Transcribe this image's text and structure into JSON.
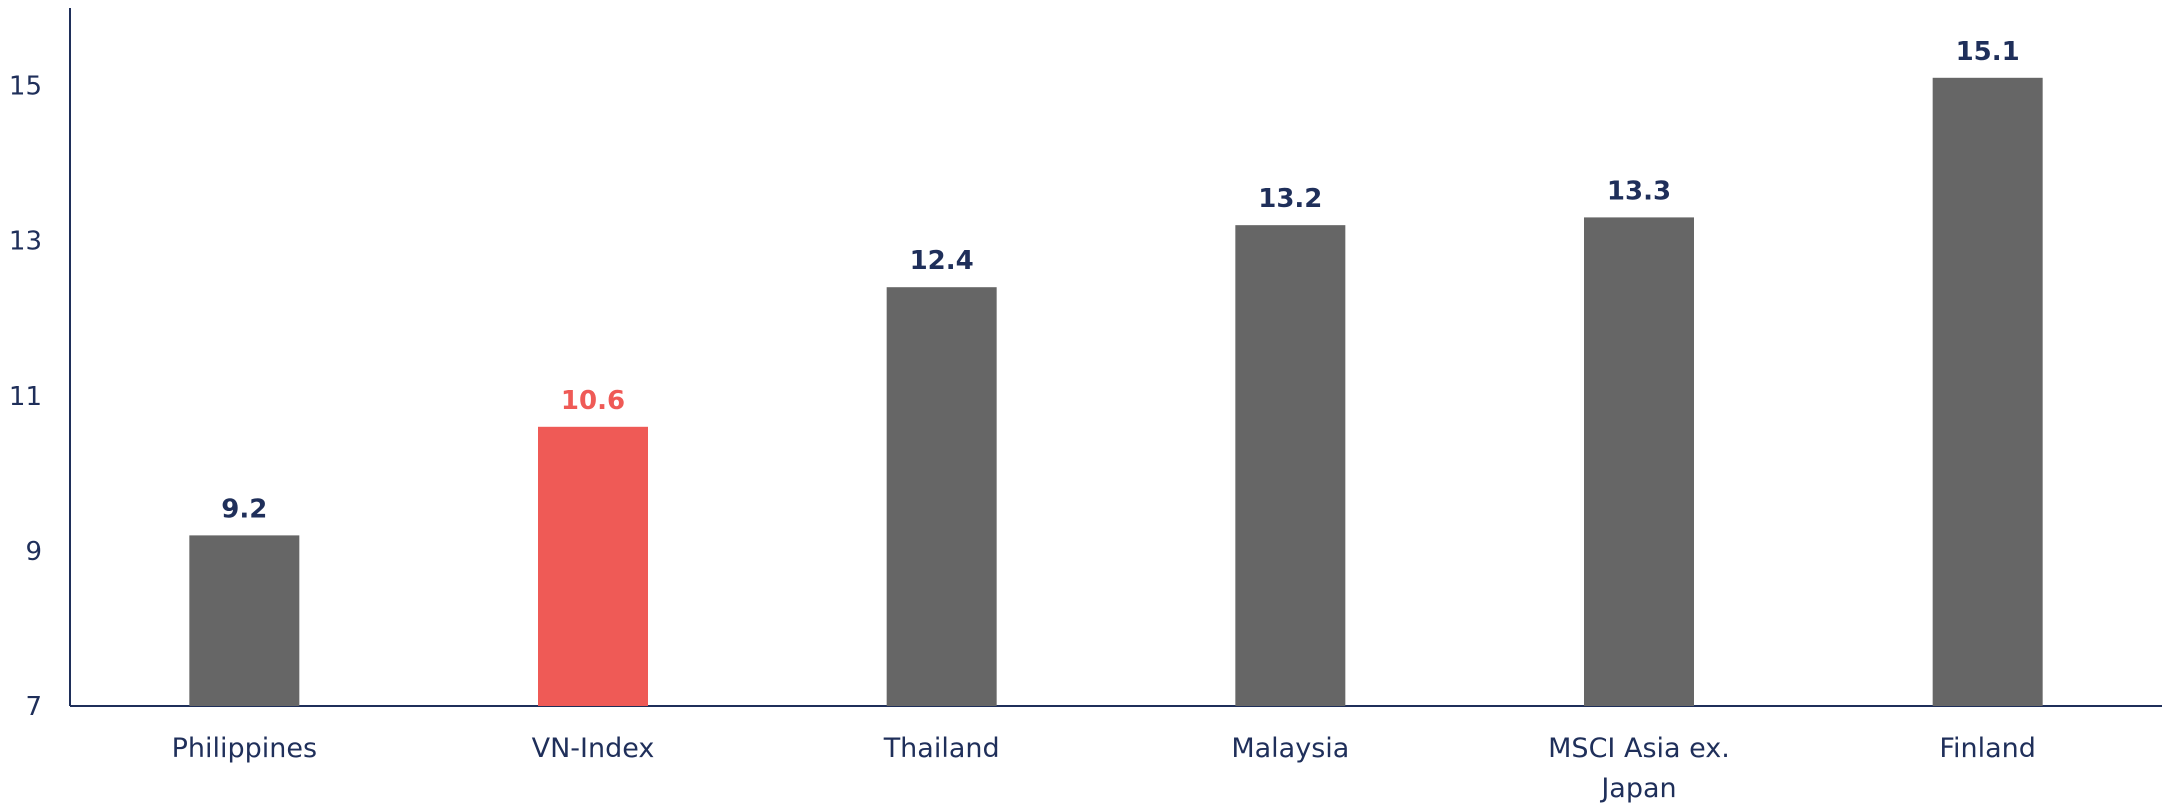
{
  "chart_data": {
    "type": "bar",
    "categories": [
      "Philippines",
      "VN-Index",
      "Thailand",
      "Malaysia",
      "MSCI Asia ex. Japan",
      "Finland"
    ],
    "category_lines": [
      [
        "Philippines"
      ],
      [
        "VN-Index"
      ],
      [
        "Thailand"
      ],
      [
        "Malaysia"
      ],
      [
        "MSCI Asia ex.",
        "Japan"
      ],
      [
        "Finland"
      ]
    ],
    "values": [
      9.2,
      10.6,
      12.4,
      13.2,
      13.3,
      15.1
    ],
    "value_labels": [
      "9.2",
      "10.6",
      "12.4",
      "13.2",
      "13.3",
      "15.1"
    ],
    "y_ticks": [
      7,
      9,
      11,
      13,
      15
    ],
    "ylim": [
      7,
      16
    ],
    "title": "",
    "xlabel": "",
    "ylabel": "",
    "grid": false,
    "legend": "none",
    "colors": {
      "bar": "#666666",
      "highlight_bar": "#ef5a56",
      "axis": "#1f2f5a",
      "label": "#1f2f5a",
      "highlight_label": "#ef5a56"
    },
    "highlight_index": 1
  }
}
